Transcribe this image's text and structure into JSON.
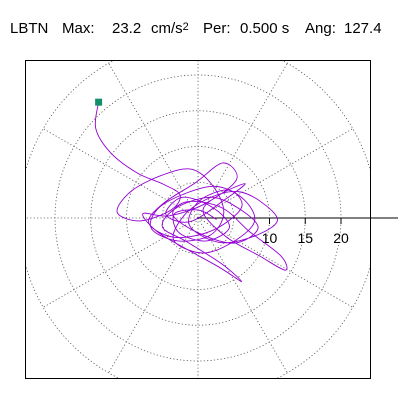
{
  "header": {
    "station": "LBTN",
    "max_label": "Max:",
    "max_value": "23.2",
    "max_unit_base": "cm/s",
    "max_unit_exp": "2",
    "period_label": "Per:",
    "period_value": "0.500 s",
    "angle_label": "Ang:",
    "angle_value": "127.4"
  },
  "chart_data": {
    "type": "scatter",
    "plot_kind": "polar particle-motion trace",
    "series": [
      {
        "color": "#9400D3",
        "x": [
          -13.9,
          -14.3,
          -12.2,
          -8.5,
          -4.8,
          -2.5,
          -3.8,
          -8.1,
          -11.3,
          -9.4,
          -5.0,
          -0.8,
          2.3,
          3.6,
          1.7,
          -2.8,
          -6.5,
          -5.6,
          -1.6,
          2.7,
          6.4,
          7.9,
          4.8,
          0.6,
          -3.4,
          -1.9,
          1.6,
          5.5,
          8.9,
          11.1,
          7.7,
          2.9,
          -1.2,
          0.2,
          4.3,
          6.1,
          2.1,
          -3.3,
          -6.9,
          -4.9,
          -0.4,
          3.5,
          5.4,
          1.0,
          -4.1,
          -7.7,
          -5.7,
          -1.5,
          3.0,
          6.1,
          3.3,
          -1.6,
          -5.0,
          -2.9,
          1.9,
          5.9,
          8.4,
          5.2,
          0.3,
          -3.5,
          -1.4,
          3.4,
          7.2,
          11.6,
          12.2,
          8.6,
          3.9,
          0.7,
          3.1,
          6.6,
          3.8,
          -1.1,
          -4.5,
          -2.2,
          2.0,
          4.4,
          1.2,
          -2.6,
          -3.3,
          0.1,
          2.6
        ],
        "y": [
          16.2,
          12.5,
          9.1,
          6.3,
          4.7,
          3.2,
          1.1,
          -0.4,
          0.8,
          3.7,
          6.0,
          6.8,
          4.2,
          0.6,
          -2.4,
          -3.2,
          -1.5,
          1.3,
          3.5,
          4.4,
          2.6,
          -0.5,
          -3.4,
          -4.9,
          -3.1,
          0.4,
          2.8,
          3.7,
          2.2,
          -0.4,
          -2.6,
          -3.4,
          -1.0,
          2.4,
          3.9,
          1.5,
          -1.7,
          -2.7,
          -0.7,
          2.0,
          4.9,
          7.7,
          5.4,
          2.0,
          0.3,
          0.6,
          -1.9,
          -4.4,
          -6.9,
          -8.9,
          -6.4,
          -3.3,
          -1.2,
          1.5,
          2.9,
          1.2,
          -1.4,
          -3.5,
          -2.2,
          0.4,
          2.3,
          1.4,
          -1.9,
          -5.3,
          -7.3,
          -5.3,
          -2.6,
          0.9,
          3.3,
          4.8,
          2.6,
          -0.5,
          0.5,
          2.9,
          1.5,
          -1.3,
          -3.2,
          -2.1,
          0.6,
          1.1,
          -0.2
        ]
      }
    ],
    "start_marker": {
      "x": -13.9,
      "y": 16.2,
      "color": "#138F6A"
    },
    "radial_rings": [
      5,
      10,
      15,
      20,
      25
    ],
    "radial_ticks": [
      10,
      15,
      20
    ],
    "spokes_deg": [
      0,
      30,
      60,
      90,
      120,
      150,
      180,
      210,
      240,
      270,
      300,
      330
    ],
    "grid": true,
    "xlim": [
      -25,
      25
    ],
    "ylim": [
      -25,
      25
    ]
  },
  "colors": {
    "trace": "#9400D3",
    "marker": "#138F6A",
    "grid": "#555555",
    "frame": "#000000"
  }
}
